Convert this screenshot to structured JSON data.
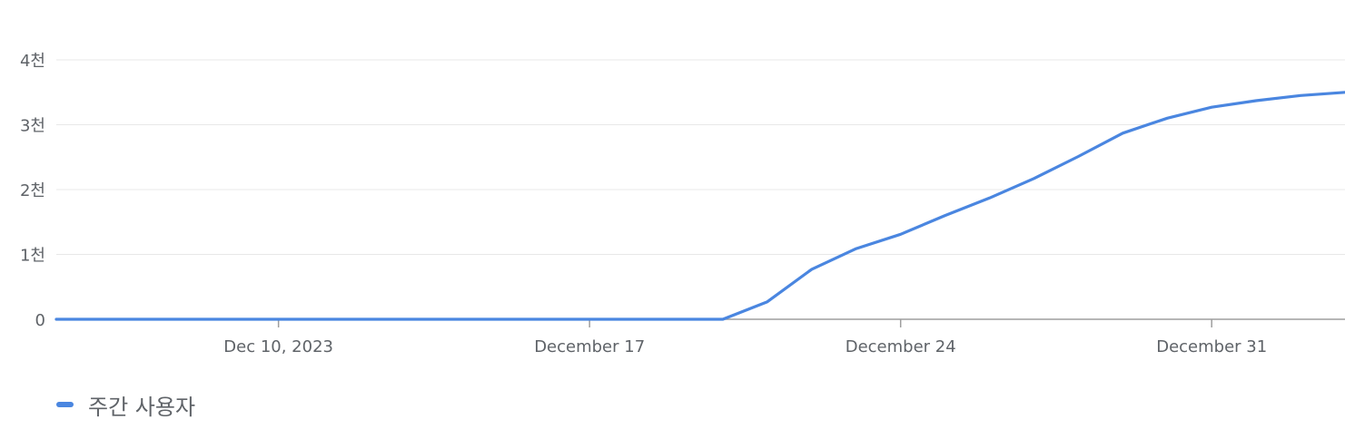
{
  "colors": {
    "series": "#4a86e0",
    "grid": "#e8e8e8",
    "axis": "#9e9e9e",
    "text": "#5f6368"
  },
  "chart_data": {
    "type": "line",
    "title": "",
    "xlabel": "",
    "ylabel": "",
    "ylim": [
      0,
      4000
    ],
    "xlim": [
      "2023-12-05",
      "2024-01-03"
    ],
    "y_ticks": [
      {
        "value": 0,
        "label": "0"
      },
      {
        "value": 1000,
        "label": "1천"
      },
      {
        "value": 2000,
        "label": "2천"
      },
      {
        "value": 3000,
        "label": "3천"
      },
      {
        "value": 4000,
        "label": "4천"
      }
    ],
    "x_ticks": [
      {
        "value": "2023-12-10",
        "label": "Dec 10, 2023"
      },
      {
        "value": "2023-12-17",
        "label": "December 17"
      },
      {
        "value": "2023-12-24",
        "label": "December 24"
      },
      {
        "value": "2023-12-31",
        "label": "December 31"
      }
    ],
    "grid": true,
    "legend_position": "bottom-left",
    "series": [
      {
        "name": "주간 사용자",
        "x": [
          "2023-12-05",
          "2023-12-06",
          "2023-12-07",
          "2023-12-08",
          "2023-12-09",
          "2023-12-10",
          "2023-12-11",
          "2023-12-12",
          "2023-12-13",
          "2023-12-14",
          "2023-12-15",
          "2023-12-16",
          "2023-12-17",
          "2023-12-18",
          "2023-12-19",
          "2023-12-20",
          "2023-12-21",
          "2023-12-22",
          "2023-12-23",
          "2023-12-24",
          "2023-12-25",
          "2023-12-26",
          "2023-12-27",
          "2023-12-28",
          "2023-12-29",
          "2023-12-30",
          "2023-12-31",
          "2024-01-01",
          "2024-01-02",
          "2024-01-03"
        ],
        "values": [
          0,
          0,
          0,
          0,
          0,
          0,
          0,
          0,
          0,
          0,
          0,
          0,
          0,
          0,
          0,
          0,
          270,
          770,
          1090,
          1310,
          1600,
          1870,
          2170,
          2510,
          2870,
          3100,
          3270,
          3370,
          3450,
          3500
        ]
      }
    ]
  }
}
